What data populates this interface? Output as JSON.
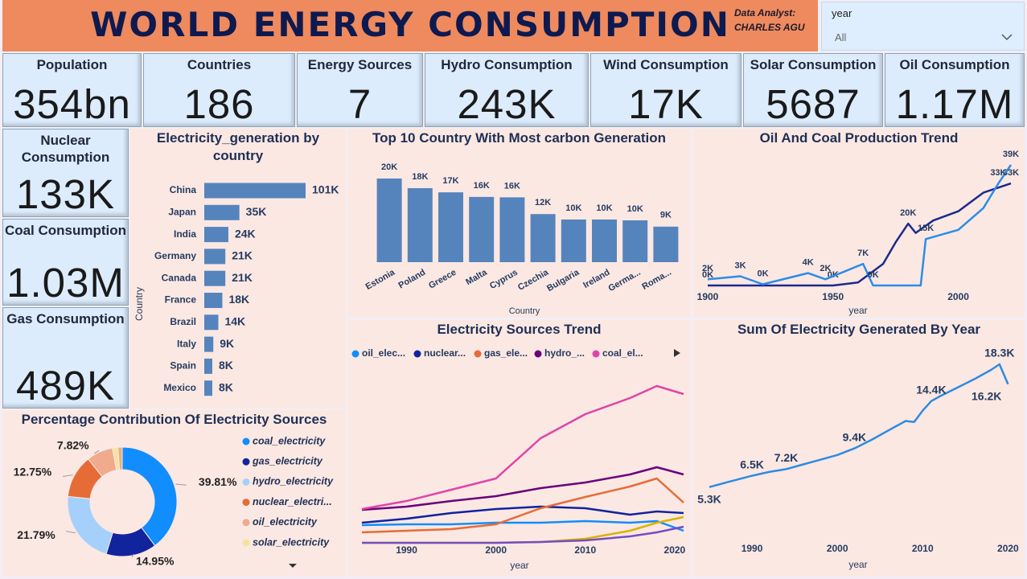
{
  "header": {
    "title": "WORLD ENERGY CONSUMPTION",
    "analyst_label": "Data Analyst:",
    "analyst_name": "CHARLES AGU",
    "slicer_label": "year",
    "slicer_value": "All"
  },
  "cards": [
    {
      "label": "Population",
      "value": "354bn"
    },
    {
      "label": "Countries",
      "value": "186"
    },
    {
      "label": "Energy Sources",
      "value": "7"
    },
    {
      "label": "Hydro Consumption",
      "value": "243K"
    },
    {
      "label": "Wind Consumption",
      "value": "17K"
    },
    {
      "label": "Solar Consumption",
      "value": "5687"
    },
    {
      "label": "Oil Consumption",
      "value": "1.17M"
    },
    {
      "label": "Nuclear Consumption",
      "value": "133K"
    },
    {
      "label": "Coal Consumption",
      "value": "1.03M"
    },
    {
      "label": "Gas Consumption",
      "value": "489K"
    }
  ],
  "chart_data": [
    {
      "type": "bar",
      "orientation": "horizontal",
      "title": "Electricity_generation by country",
      "y_label": "Country",
      "categories": [
        "China",
        "Japan",
        "India",
        "Germany",
        "Canada",
        "France",
        "Brazil",
        "Italy",
        "Spain",
        "Mexico"
      ],
      "values": [
        101000,
        35000,
        24000,
        21000,
        21000,
        18000,
        14000,
        9000,
        8000,
        8000
      ],
      "value_labels": [
        "101K",
        "35K",
        "24K",
        "21K",
        "21K",
        "18K",
        "14K",
        "9K",
        "8K",
        "8K"
      ],
      "color": "#5584bd"
    },
    {
      "type": "bar",
      "title": "Top 10 Country With Most carbon Generation",
      "x_label": "Country",
      "categories": [
        "Estonia",
        "Poland",
        "Greece",
        "Malta",
        "Cyprus",
        "Czechia",
        "Bulgaria",
        "Ireland",
        "Germa...",
        "Roma..."
      ],
      "values": [
        20000,
        17700,
        16700,
        15600,
        15500,
        11500,
        10200,
        10200,
        10000,
        8500
      ],
      "value_labels": [
        "20K",
        "18K",
        "17K",
        "16K",
        "16K",
        "12K",
        "10K",
        "10K",
        "10K",
        "9K"
      ],
      "color": "#5584bd"
    },
    {
      "type": "line",
      "title": "Oil And Coal Production Trend",
      "x_label": "year",
      "xlim": [
        1900,
        2021
      ],
      "xticks": [
        1900,
        1950,
        2000
      ],
      "series": [
        {
          "color": "#1b2a8c",
          "x": [
            1900,
            1950,
            1960,
            1970,
            1975,
            1980,
            1983,
            1990,
            2000,
            2010,
            2021
          ],
          "values": [
            0,
            0,
            1000,
            7000,
            14000,
            20000,
            17000,
            21000,
            24000,
            30000,
            33000
          ],
          "value_labels": [
            "0K",
            "0K",
            null,
            null,
            null,
            "20K",
            null,
            null,
            null,
            null,
            "33K"
          ]
        },
        {
          "color": "#2b8ce8",
          "x": [
            1900,
            1913,
            1922,
            1940,
            1947,
            1962,
            1966,
            1985,
            1987,
            2000,
            2010,
            2016,
            2021
          ],
          "values": [
            2000,
            3000,
            400,
            4000,
            2000,
            7000,
            0,
            0,
            15000,
            18000,
            25000,
            33000,
            39000
          ],
          "value_labels": [
            "2K",
            "3K",
            "0K",
            "4K",
            "2K",
            "7K",
            "0K",
            null,
            "15K",
            null,
            null,
            "33K",
            "39K"
          ]
        }
      ]
    },
    {
      "type": "line",
      "title": "Electricity Sources Trend",
      "x_label": "year",
      "xlim": [
        1985,
        2021
      ],
      "xticks": [
        1990,
        2000,
        2010,
        2020
      ],
      "x": [
        1985,
        1990,
        1995,
        2000,
        2005,
        2010,
        2015,
        2018,
        2021
      ],
      "series": [
        {
          "name": "oil_elec...",
          "color": "#118dff",
          "values": [
            22,
            23,
            23,
            25,
            25,
            27,
            25,
            27,
            15
          ]
        },
        {
          "name": "nuclear...",
          "color": "#12239e",
          "values": [
            25,
            30,
            37,
            42,
            45,
            43,
            35,
            39,
            37
          ]
        },
        {
          "name": "gas_ele...",
          "color": "#e66c37",
          "values": [
            13,
            15,
            17,
            23,
            43,
            57,
            70,
            80,
            50
          ]
        },
        {
          "name": "hydro_...",
          "color": "#6b007b",
          "values": [
            41,
            45,
            52,
            58,
            68,
            75,
            85,
            94,
            85
          ]
        },
        {
          "name": "coal_el...",
          "color": "#e044a7",
          "values": [
            42,
            52,
            66,
            80,
            130,
            160,
            180,
            195,
            185
          ]
        },
        {
          "color": "#d9b300",
          "values": [
            0,
            0,
            0,
            0,
            1,
            5,
            15,
            25,
            32
          ]
        },
        {
          "color": "#744ec2",
          "values": [
            0,
            0,
            0,
            0,
            1,
            3,
            8,
            13,
            20
          ]
        }
      ]
    },
    {
      "type": "line",
      "title": "Sum Of Electricity Generated By Year",
      "x_label": "year",
      "xlim": [
        1985,
        2021
      ],
      "xticks": [
        1990,
        2000,
        2010,
        2020
      ],
      "x": [
        1985,
        1987,
        1990,
        1992,
        1994,
        1996,
        1998,
        2000,
        2002,
        2004,
        2006,
        2008,
        2009,
        2010,
        2011,
        2012,
        2014,
        2016,
        2018,
        2019,
        2020
      ],
      "values": [
        5300,
        5800,
        6500,
        6900,
        7200,
        7700,
        8200,
        8700,
        9400,
        10300,
        11300,
        12300,
        12200,
        13400,
        14400,
        14900,
        15800,
        16700,
        17700,
        18300,
        16200
      ],
      "value_labels": [
        "5.3K",
        null,
        "6.5K",
        null,
        "7.2K",
        null,
        null,
        null,
        "9.4K",
        null,
        null,
        null,
        null,
        null,
        "14.4K",
        null,
        null,
        null,
        null,
        "18.3K",
        "16.2K"
      ],
      "color": "#2e8be0"
    },
    {
      "type": "donut",
      "title": "Percentage Contribution Of Electricity Sources",
      "categories": [
        "coal_electricity",
        "gas_electricity",
        "hydro_electricity",
        "nuclear_electri...",
        "oil_electricity",
        "solar_electricity",
        null
      ],
      "values": [
        39.81,
        14.95,
        21.79,
        12.75,
        7.82,
        1.6,
        1.28
      ],
      "value_labels": [
        "39.81%",
        "14.95%",
        "21.79%",
        "12.75%",
        "7.82%",
        null,
        null
      ],
      "colors": [
        "#118dff",
        "#12239e",
        "#a5d0fb",
        "#e66c37",
        "#f1aa8c",
        "#f3e3a0",
        "#e8b07a"
      ]
    }
  ]
}
